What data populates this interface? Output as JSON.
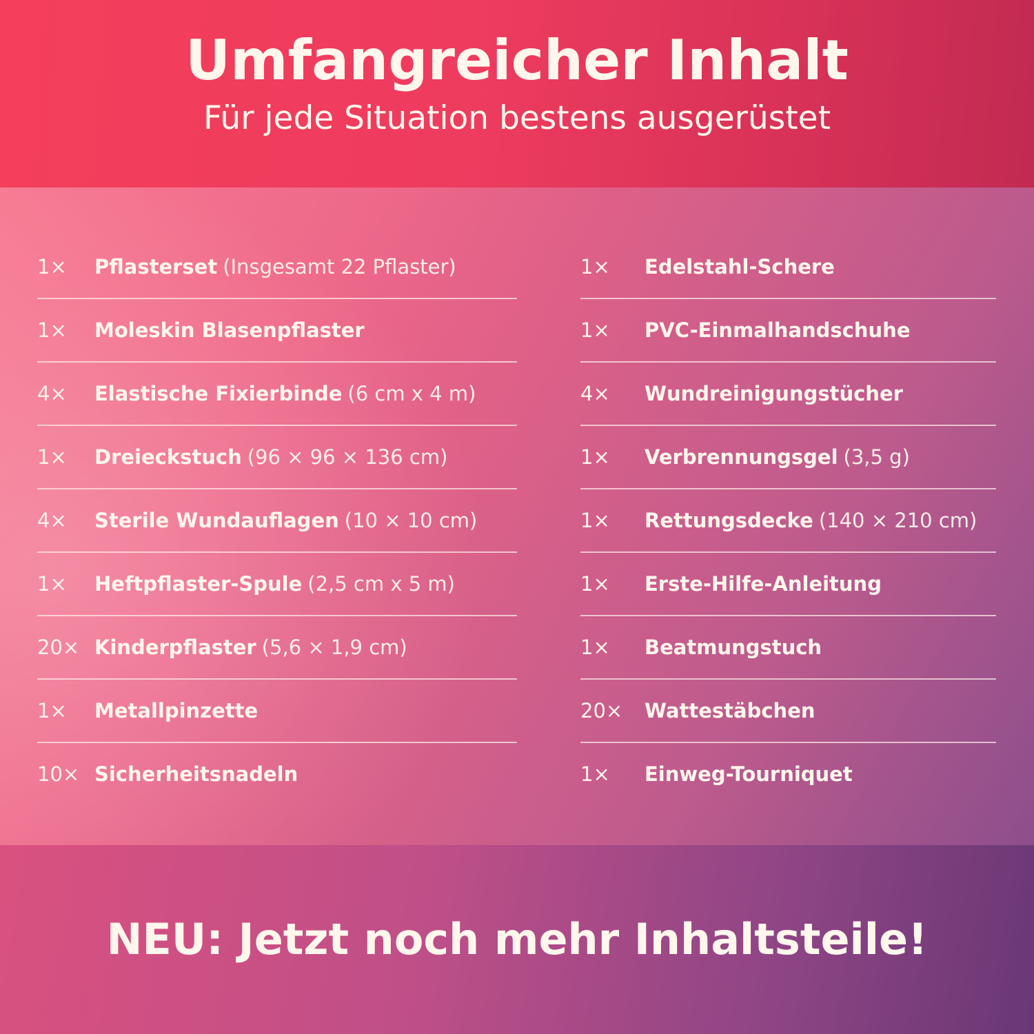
{
  "header": {
    "title": "Umfangreicher Inhalt",
    "subtitle": "Für jede Situation bestens ausgerüstet"
  },
  "left_items": [
    {
      "qty": "1×",
      "name": "Pflasterset",
      "detail": "(Insgesamt 22 Pflaster)"
    },
    {
      "qty": "1×",
      "name": "Moleskin Blasenpflaster",
      "detail": ""
    },
    {
      "qty": "4×",
      "name": "Elastische Fixierbinde",
      "detail": "(6 cm x 4 m)"
    },
    {
      "qty": "1×",
      "name": "Dreieckstuch",
      "detail": "(96 × 96 × 136 cm)"
    },
    {
      "qty": "4×",
      "name": "Sterile Wundauflagen",
      "detail": "(10 × 10 cm)"
    },
    {
      "qty": "1×",
      "name": "Heftpflaster-Spule",
      "detail": "(2,5 cm x 5 m)"
    },
    {
      "qty": "20×",
      "name": "Kinderpflaster",
      "detail": "(5,6 × 1,9 cm)"
    },
    {
      "qty": "1×",
      "name": "Metallpinzette",
      "detail": ""
    },
    {
      "qty": "10×",
      "name": "Sicherheitsnadeln",
      "detail": ""
    }
  ],
  "right_items": [
    {
      "qty": "1×",
      "name": "Edelstahl-Schere",
      "detail": ""
    },
    {
      "qty": "1×",
      "name": "PVC-Einmalhandschuhe",
      "detail": ""
    },
    {
      "qty": "4×",
      "name": "Wundreinigungstücher",
      "detail": ""
    },
    {
      "qty": "1×",
      "name": "Verbrennungsgel",
      "detail": "(3,5 g)"
    },
    {
      "qty": "1×",
      "name": "Rettungsdecke",
      "detail": "(140 × 210 cm)"
    },
    {
      "qty": "1×",
      "name": "Erste-Hilfe-Anleitung",
      "detail": ""
    },
    {
      "qty": "1×",
      "name": "Beatmungstuch",
      "detail": ""
    },
    {
      "qty": "20×",
      "name": "Wattestäbchen",
      "detail": ""
    },
    {
      "qty": "1×",
      "name": "Einweg-Tourniquet",
      "detail": ""
    }
  ],
  "footer": {
    "text": "NEU: Jetzt noch mehr Inhaltsteile!"
  }
}
